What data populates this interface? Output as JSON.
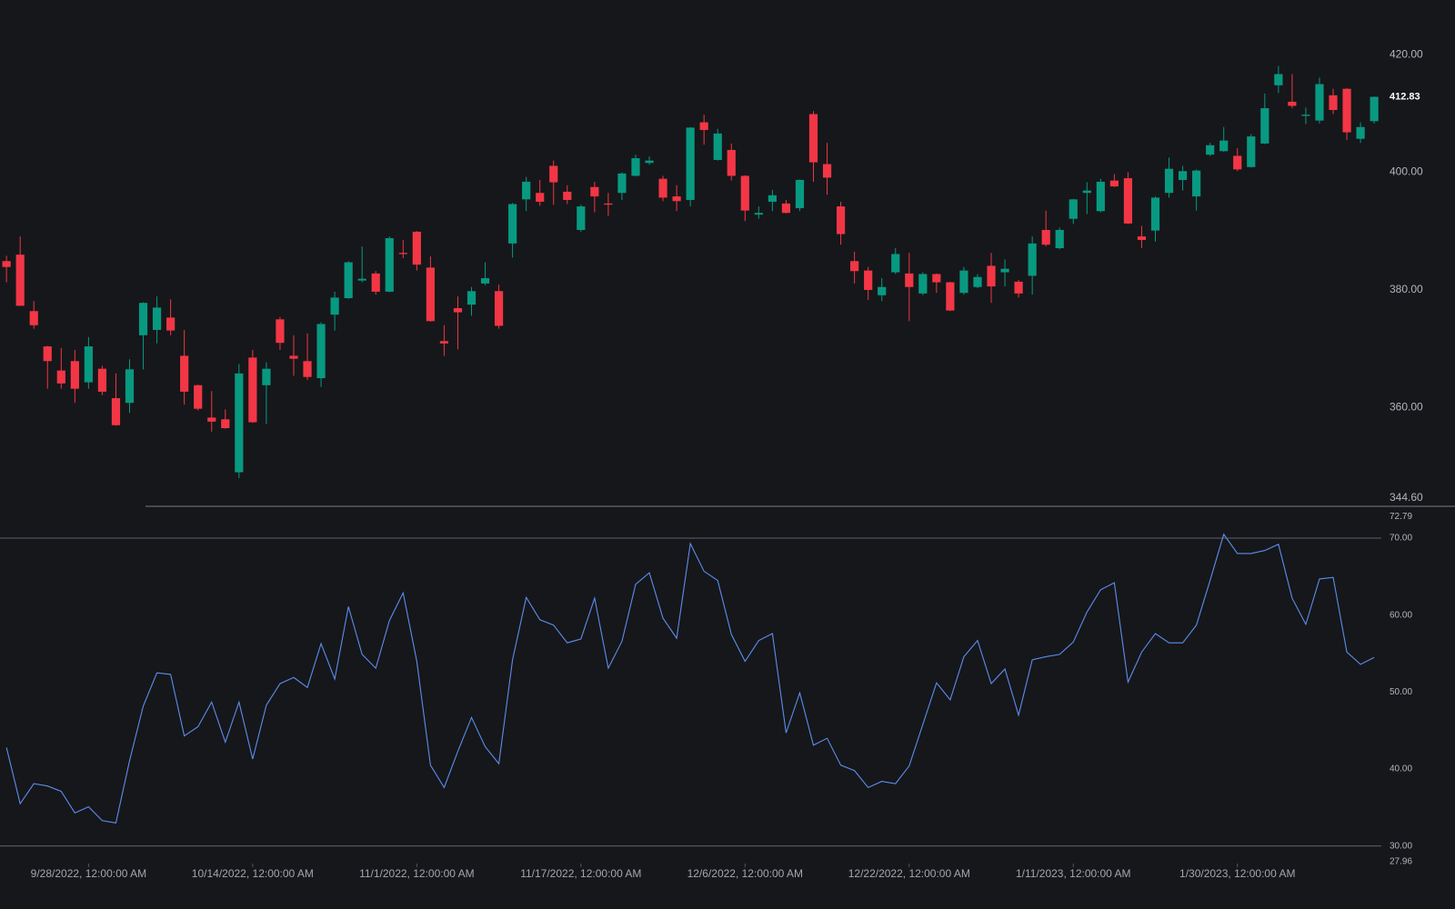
{
  "chart_data": [
    {
      "type": "candlestick",
      "up_color": "#089981",
      "down_color": "#f23645",
      "ylim": [
        344.6,
        429.3
      ],
      "yticks": [
        {
          "value": 344.6,
          "label": "344.60"
        },
        {
          "value": 360,
          "label": "360.00"
        },
        {
          "value": 380,
          "label": "380.00"
        },
        {
          "value": 400,
          "label": "400.00"
        },
        {
          "value": 420,
          "label": "420.00"
        }
      ],
      "last_label": "412.83",
      "categories": [
        null,
        null,
        null,
        null,
        null,
        null,
        "9/28/2022, 12:00:00 AM",
        null,
        null,
        null,
        null,
        null,
        null,
        null,
        null,
        null,
        null,
        null,
        "10/14/2022, 12:00:00 AM",
        null,
        null,
        null,
        null,
        null,
        null,
        null,
        null,
        null,
        null,
        null,
        "11/1/2022, 12:00:00 AM",
        null,
        null,
        null,
        null,
        null,
        null,
        null,
        null,
        null,
        null,
        null,
        "11/17/2022, 12:00:00 AM",
        null,
        null,
        null,
        null,
        null,
        null,
        null,
        null,
        null,
        null,
        null,
        "12/6/2022, 12:00:00 AM",
        null,
        null,
        null,
        null,
        null,
        null,
        null,
        null,
        null,
        null,
        null,
        "12/22/2022, 12:00:00 AM",
        null,
        null,
        null,
        null,
        null,
        null,
        null,
        null,
        null,
        null,
        null,
        "1/11/2023, 12:00:00 AM",
        null,
        null,
        null,
        null,
        null,
        null,
        null,
        null,
        null,
        null,
        null,
        "1/30/2023, 12:00:00 AM",
        null,
        null,
        null,
        null,
        null,
        null,
        null,
        null,
        null,
        null
      ],
      "open": [
        384.9,
        386.0,
        376.4,
        370.4,
        366.3,
        367.9,
        364.3,
        366.6,
        361.6,
        360.8,
        372.3,
        373.2,
        375.3,
        368.8,
        363.8,
        358.3,
        358.0,
        349.0,
        368.5,
        363.8,
        375.0,
        368.8,
        367.9,
        365.0,
        375.8,
        378.6,
        381.6,
        382.8,
        379.7,
        386.3,
        389.9,
        383.8,
        371.3,
        376.9,
        377.5,
        381.1,
        379.8,
        387.9,
        395.4,
        396.5,
        401.1,
        396.7,
        390.2,
        397.5,
        394.7,
        396.5,
        399.4,
        401.6,
        398.9,
        395.9,
        395.3,
        408.5,
        402.1,
        403.8,
        399.4,
        392.8,
        395.0,
        394.7,
        393.9,
        409.9,
        401.4,
        394.2,
        384.9,
        383.3,
        379.1,
        383.0,
        382.8,
        379.4,
        382.7,
        381.3,
        379.5,
        380.5,
        384.1,
        383.0,
        381.4,
        382.4,
        390.2,
        387.1,
        392.1,
        396.5,
        393.4,
        398.6,
        399.0,
        389.1,
        390.1,
        396.5,
        398.7,
        395.9,
        403.0,
        403.6,
        402.8,
        400.9,
        404.9,
        414.8,
        412.0,
        409.6,
        408.8,
        413.1,
        414.2,
        405.7,
        408.7
      ],
      "high": [
        385.8,
        389.1,
        378.1,
        370.5,
        370.1,
        369.8,
        372.0,
        367.1,
        365.8,
        368.2,
        377.9,
        378.9,
        378.4,
        373.2,
        363.9,
        362.8,
        359.7,
        367.4,
        369.8,
        367.7,
        375.4,
        372.3,
        372.6,
        374.5,
        379.7,
        384.9,
        387.4,
        383.2,
        389.1,
        388.5,
        390.0,
        385.7,
        374.0,
        378.9,
        380.5,
        384.7,
        380.9,
        394.8,
        399.2,
        398.7,
        402.0,
        397.8,
        394.5,
        398.4,
        396.5,
        400.0,
        403.0,
        402.7,
        399.4,
        397.8,
        407.7,
        409.8,
        407.4,
        404.9,
        399.5,
        394.2,
        397.0,
        395.3,
        398.8,
        410.4,
        405.0,
        395.0,
        386.5,
        383.9,
        382.0,
        387.1,
        386.3,
        383.0,
        382.8,
        381.4,
        383.9,
        382.7,
        386.3,
        385.2,
        381.7,
        389.1,
        393.5,
        390.6,
        395.5,
        398.3,
        398.9,
        399.7,
        400.0,
        390.9,
        395.9,
        402.5,
        401.1,
        400.5,
        405.0,
        407.7,
        404.1,
        406.5,
        413.4,
        418.1,
        416.7,
        411.0,
        416.1,
        414.2,
        414.3,
        408.5,
        412.9
      ],
      "low": [
        381.3,
        377.3,
        373.4,
        363.2,
        363.2,
        360.8,
        363.2,
        362.1,
        356.9,
        359.1,
        366.5,
        370.9,
        372.3,
        360.5,
        359.5,
        355.9,
        356.4,
        348.0,
        357.4,
        357.2,
        369.8,
        365.4,
        364.7,
        363.5,
        373.1,
        378.5,
        381.3,
        379.2,
        379.6,
        385.4,
        383.3,
        374.6,
        368.8,
        369.9,
        375.6,
        380.8,
        373.4,
        385.5,
        393.4,
        394.3,
        394.5,
        394.6,
        389.9,
        393.2,
        392.6,
        395.3,
        399.3,
        401.3,
        395.1,
        393.4,
        394.2,
        404.7,
        402.0,
        398.6,
        391.7,
        392.1,
        393.4,
        393.0,
        393.4,
        398.4,
        396.2,
        387.7,
        381.1,
        378.3,
        378.1,
        382.7,
        374.7,
        379.1,
        379.5,
        376.4,
        379.2,
        380.3,
        377.8,
        380.6,
        378.7,
        379.2,
        387.4,
        386.9,
        391.2,
        392.9,
        393.2,
        397.5,
        391.2,
        387.1,
        388.2,
        395.7,
        396.9,
        393.5,
        402.8,
        403.5,
        400.2,
        400.8,
        404.8,
        413.5,
        410.9,
        408.2,
        408.3,
        409.9,
        405.5,
        405.0,
        408.3
      ],
      "close": [
        383.9,
        377.3,
        374.0,
        367.9,
        364.1,
        363.2,
        370.4,
        362.7,
        357.0,
        366.5,
        377.8,
        377.0,
        373.1,
        362.7,
        359.8,
        357.6,
        356.5,
        365.8,
        357.5,
        366.6,
        371.0,
        368.3,
        365.2,
        374.2,
        378.7,
        384.7,
        381.9,
        379.7,
        388.8,
        386.1,
        384.3,
        374.7,
        370.9,
        376.2,
        379.8,
        382.0,
        373.9,
        394.6,
        398.4,
        395.0,
        398.3,
        395.3,
        394.2,
        395.9,
        394.5,
        399.8,
        402.4,
        402.0,
        395.7,
        395.1,
        407.6,
        407.2,
        406.6,
        399.4,
        393.5,
        393.1,
        396.1,
        393.1,
        398.7,
        401.7,
        399.1,
        389.5,
        383.2,
        380.0,
        380.5,
        386.1,
        380.5,
        382.7,
        381.3,
        376.5,
        383.3,
        382.2,
        380.6,
        383.6,
        379.4,
        387.9,
        387.7,
        390.2,
        395.4,
        396.9,
        398.4,
        397.6,
        391.3,
        388.5,
        395.7,
        400.6,
        400.2,
        400.3,
        404.6,
        405.4,
        400.5,
        406.1,
        410.9,
        416.7,
        411.3,
        409.8,
        415.0,
        410.6,
        406.8,
        407.7,
        412.83
      ]
    },
    {
      "type": "line",
      "color": "#5b8def",
      "ylim": [
        27.96,
        72.79
      ],
      "yticks": [
        {
          "value": 27.96,
          "label": "27.96"
        },
        {
          "value": 30,
          "label": "30.00"
        },
        {
          "value": 40,
          "label": "40.00"
        },
        {
          "value": 50,
          "label": "50.00"
        },
        {
          "value": 60,
          "label": "60.00"
        },
        {
          "value": 70,
          "label": "70.00"
        },
        {
          "value": 72.79,
          "label": "72.79"
        }
      ],
      "levels": [
        70,
        30
      ],
      "values": [
        42.8,
        35.5,
        38.1,
        37.8,
        37.1,
        34.3,
        35.1,
        33.3,
        33.0,
        41.1,
        48.2,
        52.5,
        52.3,
        44.3,
        45.5,
        48.7,
        43.5,
        48.7,
        41.3,
        48.3,
        51.1,
        51.9,
        50.6,
        56.3,
        51.7,
        61.1,
        54.9,
        53.1,
        59.3,
        62.9,
        54.0,
        40.5,
        37.6,
        42.3,
        46.7,
        42.9,
        40.7,
        54.2,
        62.3,
        59.4,
        58.7,
        56.4,
        56.9,
        62.2,
        53.1,
        56.6,
        64.0,
        65.5,
        59.6,
        57.0,
        69.3,
        65.7,
        64.5,
        57.5,
        54.0,
        56.7,
        57.6,
        44.7,
        49.9,
        43.1,
        44.0,
        40.5,
        39.8,
        37.6,
        38.4,
        38.1,
        40.4,
        45.8,
        51.2,
        49.0,
        54.6,
        56.7,
        51.1,
        53.0,
        47.0,
        54.2,
        54.6,
        54.9,
        56.5,
        60.4,
        63.3,
        64.2,
        51.3,
        55.2,
        57.6,
        56.4,
        56.4,
        58.7,
        64.5,
        70.5,
        68.0,
        68.0,
        68.4,
        69.2,
        62.2,
        58.8,
        64.7,
        64.9,
        55.2,
        53.6,
        54.5
      ]
    }
  ]
}
